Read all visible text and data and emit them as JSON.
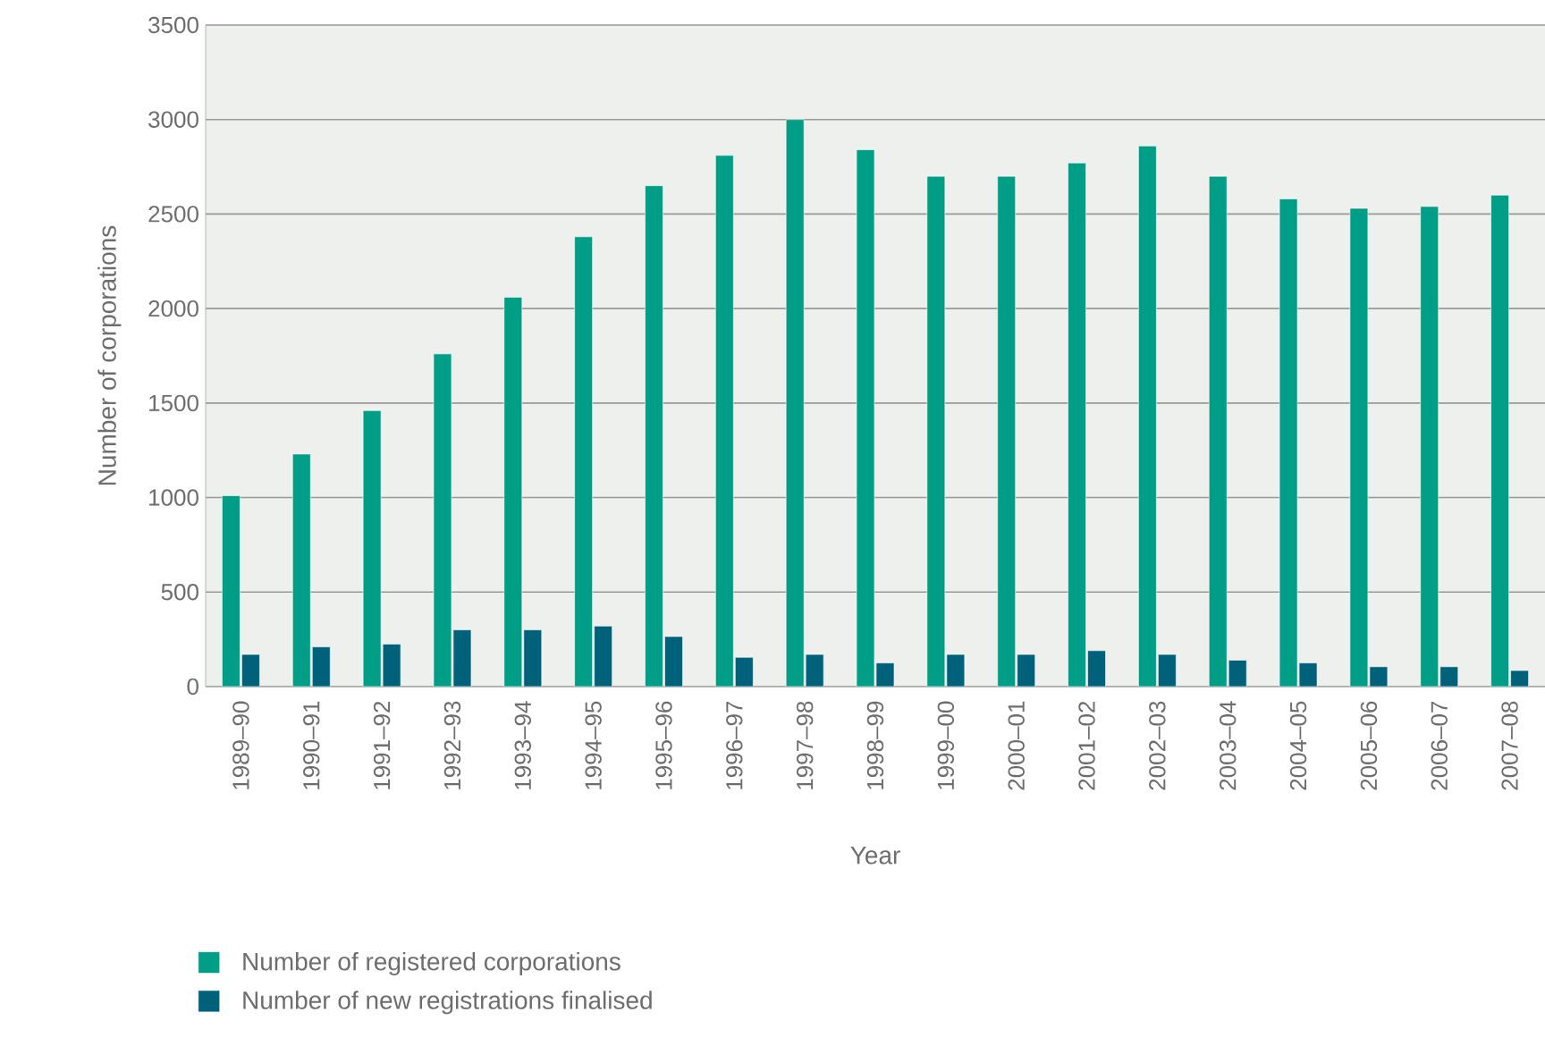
{
  "chart_data": {
    "type": "bar",
    "xlabel": "Year",
    "ylabel": "Number of corporations",
    "categories": [
      "1989–90",
      "1990–91",
      "1991–92",
      "1992–93",
      "1993–94",
      "1994–95",
      "1995–96",
      "1996–97",
      "1997–98",
      "1998–99",
      "1999–00",
      "2000–01",
      "2001–02",
      "2002–03",
      "2003–04",
      "2004–05",
      "2005–06",
      "2006–07",
      "2007–08"
    ],
    "series": [
      {
        "name": "Number of registered corporations",
        "color": "#009e87",
        "values": [
          1010,
          1230,
          1460,
          1760,
          2060,
          2380,
          2650,
          2810,
          3000,
          2840,
          2700,
          2700,
          2770,
          2860,
          2700,
          2580,
          2530,
          2540,
          2600
        ]
      },
      {
        "name": "Number of new registrations finalised",
        "color": "#00627a",
        "values": [
          170,
          210,
          225,
          300,
          300,
          320,
          265,
          155,
          170,
          125,
          170,
          170,
          190,
          170,
          140,
          125,
          105,
          105,
          85
        ]
      }
    ],
    "ylim": [
      0,
      3500
    ],
    "yticks": [
      0,
      500,
      1000,
      1500,
      2000,
      2500,
      3000,
      3500
    ],
    "grid": "y",
    "legend": "bottom left"
  }
}
